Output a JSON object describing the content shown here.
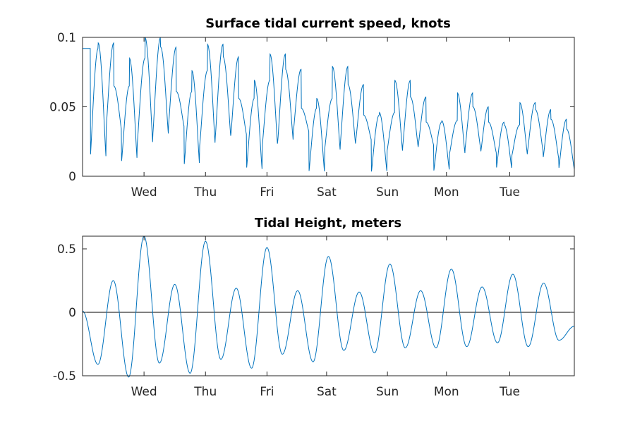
{
  "chart_data": [
    {
      "type": "line",
      "title": "Surface tidal current speed, knots",
      "xlabel": "",
      "ylabel": "",
      "ylim": [
        0,
        0.1
      ],
      "yticks": [
        0,
        0.05,
        0.1
      ],
      "ytick_labels": [
        "0",
        "0.05",
        "0.1"
      ],
      "xlim_days": [
        0,
        8
      ],
      "xtick_labels": [
        "Wed",
        "Thu",
        "Fri",
        "Sat",
        "Sun",
        "Mon",
        "Tue"
      ],
      "grid": false,
      "color": "#0072BD",
      "series": [
        {
          "peaks": [
            0.092,
            0.096,
            0.065,
            0.085,
            0.1,
            0.093,
            0.061,
            0.076,
            0.095,
            0.086,
            0.056,
            0.069,
            0.088,
            0.077,
            0.049,
            0.056,
            0.079,
            0.066,
            0.044,
            0.046,
            0.069,
            0.057,
            0.039,
            0.04,
            0.06,
            0.05,
            0.039,
            0.037,
            0.053,
            0.048,
            0.041,
            0.034
          ],
          "troughs": [
            0.014,
            0.033,
            0.011,
            0.023,
            0.03,
            0.036,
            0.007,
            0.022,
            0.028,
            0.03,
            0.005,
            0.021,
            0.025,
            0.032,
            0.003,
            0.019,
            0.022,
            0.026,
            0.003,
            0.018,
            0.021,
            0.022,
            0.004,
            0.016,
            0.02,
            0.017,
            0.005,
            0.015,
            0.018,
            0.013,
            0.005
          ]
        }
      ]
    },
    {
      "type": "line",
      "title": "Tidal Height, meters",
      "xlabel": "",
      "ylabel": "",
      "ylim": [
        -0.5,
        0.6
      ],
      "yticks": [
        -0.5,
        0,
        0.5
      ],
      "ytick_labels": [
        "-0.5",
        "0",
        "0.5"
      ],
      "xlim_days": [
        0,
        8
      ],
      "xtick_labels": [
        "Wed",
        "Thu",
        "Fri",
        "Sat",
        "Sun",
        "Mon",
        "Tue"
      ],
      "zero_line": true,
      "grid": false,
      "color": "#0072BD",
      "series": [
        {
          "extrema": [
            0.01,
            -0.41,
            0.25,
            -0.51,
            0.6,
            -0.4,
            0.22,
            -0.48,
            0.56,
            -0.37,
            0.19,
            -0.44,
            0.51,
            -0.33,
            0.17,
            -0.39,
            0.44,
            -0.3,
            0.16,
            -0.32,
            0.38,
            -0.28,
            0.17,
            -0.28,
            0.34,
            -0.27,
            0.2,
            -0.24,
            0.3,
            -0.27,
            0.23,
            -0.22,
            -0.11
          ]
        }
      ]
    }
  ]
}
